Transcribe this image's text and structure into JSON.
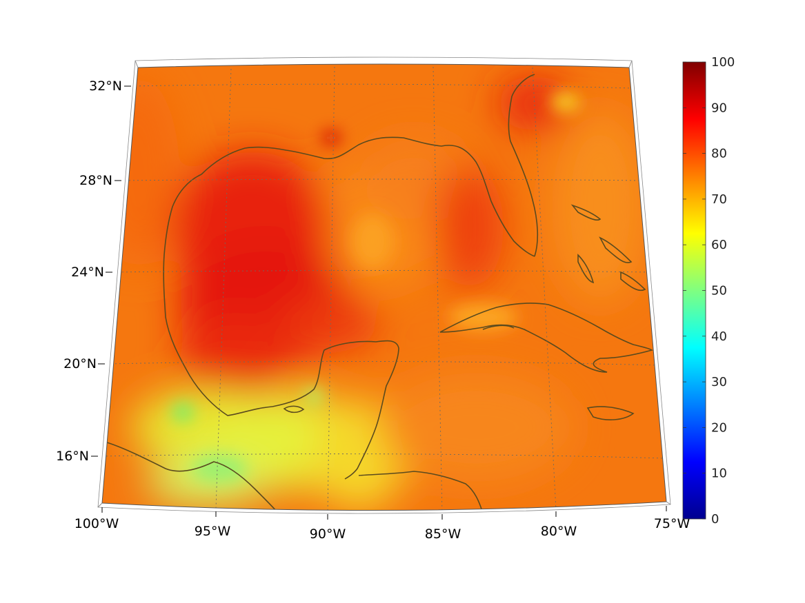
{
  "map": {
    "projection": "conic",
    "lon_range": [
      -100,
      -75
    ],
    "lat_range": [
      14,
      33
    ],
    "graticule_dashed": true,
    "field_colormap": "jet",
    "coastline_color": "#5a4a1e",
    "lon_labels": [
      "100°W",
      "95°W",
      "90°W",
      "85°W",
      "80°W",
      "75°W"
    ],
    "lat_labels": [
      "16°N",
      "20°N",
      "24°N",
      "28°N",
      "32°N"
    ]
  },
  "colorbar": {
    "min": 0,
    "max": 100,
    "tick_labels": [
      "0",
      "10",
      "20",
      "30",
      "40",
      "50",
      "60",
      "70",
      "80",
      "90",
      "100"
    ],
    "colors": [
      "#00008f",
      "#0000ff",
      "#0080ff",
      "#00ffff",
      "#80ff80",
      "#ffff00",
      "#ff8000",
      "#ff0000",
      "#800000"
    ]
  }
}
